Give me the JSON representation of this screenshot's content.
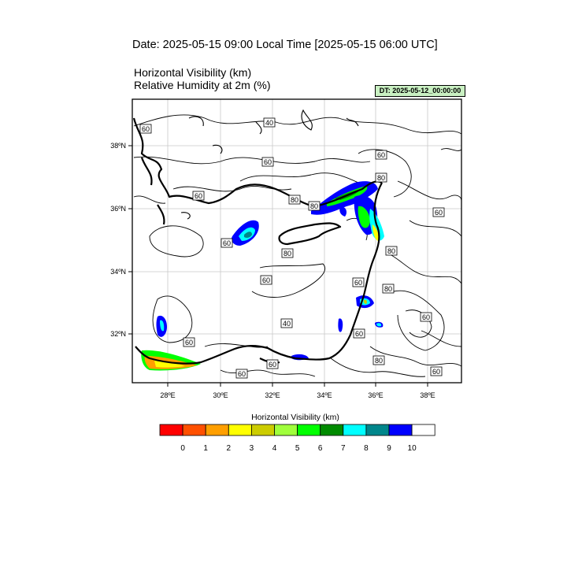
{
  "header": {
    "date_title": "Date: 2025-05-15  09:00 Local Time [2025-05-15  06:00 UTC]",
    "field_title_1": "Horizontal Visibility   (km)",
    "field_title_2": "Relative Humidity at 2m   (%)",
    "dt_stamp": "DT: 2025-05-12_00:00:00"
  },
  "map": {
    "lon_ticks": [
      "28ºE",
      "30ºE",
      "32ºE",
      "34ºE",
      "36ºE",
      "38ºE"
    ],
    "lat_ticks": [
      "38ºN",
      "36ºN",
      "34ºN",
      "32ºN"
    ],
    "contour_labels": [
      "40",
      "60",
      "60",
      "60",
      "80",
      "60",
      "80",
      "60",
      "80",
      "60",
      "80",
      "80",
      "60",
      "60",
      "80",
      "60",
      "40",
      "60",
      "60",
      "80",
      "60",
      "60",
      "60"
    ]
  },
  "colorbar": {
    "title": "Horizontal Visibility  (km)",
    "colors": [
      "#ff0000",
      "#ff5000",
      "#ff9f00",
      "#ffff00",
      "#cccc00",
      "#a0ff3c",
      "#00ff00",
      "#008a00",
      "#00ffff",
      "#00868b",
      "#0000ff",
      "#ffffff"
    ],
    "tick_labels": [
      "0",
      "1",
      "2",
      "3",
      "4",
      "5",
      "6",
      "7",
      "8",
      "9",
      "10"
    ]
  }
}
